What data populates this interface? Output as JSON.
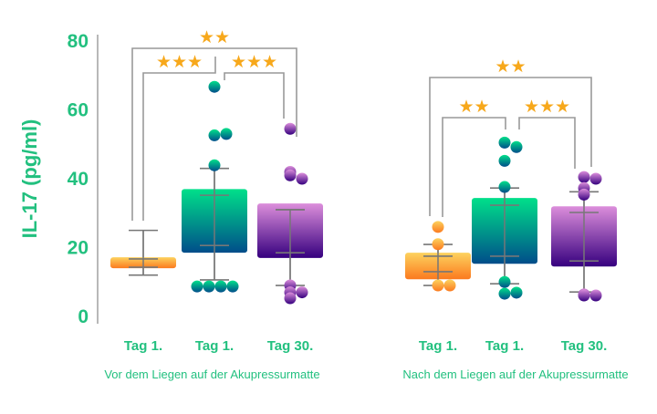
{
  "chart_data": {
    "type": "box",
    "ylabel": "IL-17 (pg/ml)",
    "ylim": [
      0,
      80
    ],
    "yticks": [
      0,
      20,
      40,
      60,
      80
    ],
    "grid": false,
    "colors": {
      "orange": [
        "#fdd25e",
        "#fb7a1f"
      ],
      "teal": [
        "#00e08a",
        "#004d8a"
      ],
      "purple": [
        "#dc8edb",
        "#36007f"
      ],
      "text": "#22c07f",
      "stars": "#f7a81b"
    },
    "groups": [
      {
        "label": "Vor dem Liegen auf der Akupressurmatte",
        "boxes": [
          {
            "label": "Tag 1.",
            "color": "orange",
            "box": [
              14,
              17.2
            ],
            "whisker": [
              12,
              25
            ],
            "inner": [
              14.3,
              16.7
            ],
            "points": []
          },
          {
            "label": "Tag 1.",
            "color": "teal",
            "box": [
              18.5,
              37
            ],
            "whisker": [
              10.6,
              43
            ],
            "inner": [
              20.6,
              35.2
            ],
            "points": [
              66.7,
              52.6,
              53,
              43.9,
              8.7,
              8.7,
              8.7,
              8.7
            ]
          },
          {
            "label": "Tag 30.",
            "color": "purple",
            "box": [
              17,
              32.8
            ],
            "whisker": [
              9,
              31
            ],
            "inner": [
              18.5,
              31
            ],
            "points": [
              54.5,
              42,
              41,
              40,
              9,
              7,
              7,
              5.3
            ]
          }
        ],
        "brackets": [
          {
            "from": 0,
            "to": 2,
            "stars": "★★"
          },
          {
            "from": 0,
            "to": 1,
            "stars": "★★★"
          },
          {
            "from": 1,
            "to": 2,
            "stars": "★★★"
          }
        ]
      },
      {
        "label": "Nach dem Liegen auf der Akupressurmatte",
        "boxes": [
          {
            "label": "Tag 1.",
            "color": "orange",
            "box": [
              10.8,
              18.5
            ],
            "whisker": [
              9,
              20.9
            ],
            "inner": [
              13,
              17.5
            ],
            "points": [
              26,
              21,
              9,
              9
            ]
          },
          {
            "label": "Tag 1.",
            "color": "teal",
            "box": [
              15.3,
              34.4
            ],
            "whisker": [
              9.5,
              37.3
            ],
            "inner": [
              17.5,
              32.3
            ],
            "points": [
              50.5,
              49.2,
              45.2,
              37.6,
              10,
              6.6,
              6.9
            ]
          },
          {
            "label": "Tag 30.",
            "color": "purple",
            "box": [
              14.5,
              32
            ],
            "whisker": [
              7.1,
              36.2
            ],
            "inner": [
              16.1,
              30.2
            ],
            "points": [
              40.5,
              40,
              37.3,
              35.4,
              6.4,
              6.1,
              6.1
            ]
          }
        ],
        "brackets": [
          {
            "from": 0,
            "to": 2,
            "stars": "★★"
          },
          {
            "from": 0,
            "to": 1,
            "stars": "★★"
          },
          {
            "from": 1,
            "to": 2,
            "stars": "★★★"
          }
        ]
      }
    ]
  }
}
